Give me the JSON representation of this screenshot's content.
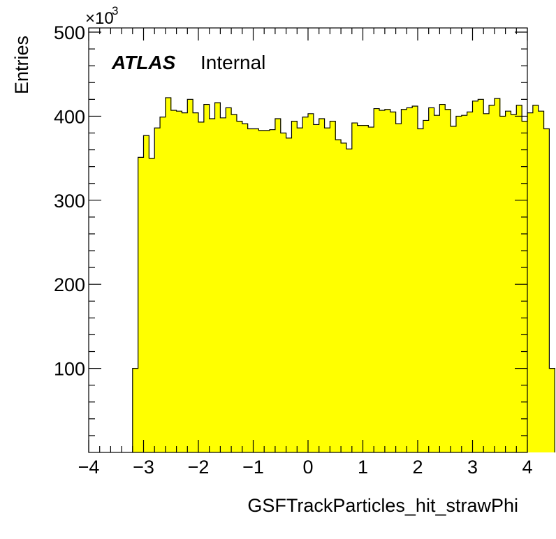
{
  "chart_data": {
    "type": "histogram",
    "title": "",
    "xlabel": "GSFTrackParticles_hit_strawPhi",
    "ylabel": "Entries",
    "y_multiplier": "×10",
    "y_multiplier_exp": "3",
    "xlim": [
      -4,
      4
    ],
    "ylim": [
      0,
      505
    ],
    "x_major_ticks": [
      -4,
      -3,
      -2,
      -1,
      0,
      1,
      2,
      3,
      4
    ],
    "x_tick_labels": [
      "−4",
      "−3",
      "−2",
      "−1",
      "0",
      "1",
      "2",
      "3",
      "4"
    ],
    "y_major_ticks": [
      100,
      200,
      300,
      400,
      500
    ],
    "y_tick_labels": [
      "100",
      "200",
      "300",
      "400",
      "500"
    ],
    "fill_color": "#ffff00",
    "line_color": "#000000",
    "bin_start": -3.2,
    "bin_width": 0.1,
    "values": [
      100,
      351,
      377,
      350,
      386,
      399,
      422,
      407,
      406,
      404,
      420,
      404,
      393,
      414,
      397,
      416,
      398,
      410,
      402,
      394,
      391,
      385,
      385,
      383,
      383,
      384,
      397,
      380,
      374,
      394,
      386,
      399,
      403,
      390,
      397,
      386,
      394,
      372,
      368,
      361,
      392,
      389,
      389,
      387,
      409,
      407,
      408,
      405,
      391,
      408,
      410,
      412,
      385,
      395,
      410,
      401,
      414,
      408,
      388,
      400,
      401,
      405,
      418,
      420,
      403,
      413,
      421,
      400,
      406,
      402,
      413,
      394,
      404,
      413,
      406,
      385,
      100
    ]
  },
  "annotation": {
    "atlas": "ATLAS",
    "internal": "Internal"
  }
}
